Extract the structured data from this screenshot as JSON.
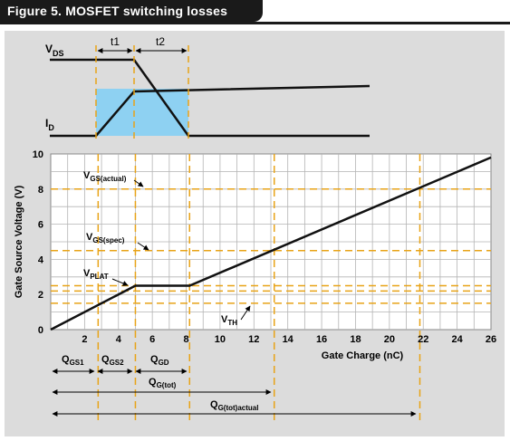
{
  "figure_title": "Figure 5. MOSFET switching losses",
  "top_diagram": {
    "vds_main": "V",
    "vds_sub": "DS",
    "id_main": "I",
    "id_sub": "D",
    "t1": "t1",
    "t2": "t2"
  },
  "colors": {
    "accent_orange": "#e8a317",
    "shade_blue": "#8ed1f2",
    "panel_gray": "#dcdcdc",
    "banner": "#1a1a1a"
  },
  "chart_data": {
    "type": "line",
    "xlabel": "Gate Charge (nC)",
    "ylabel": "Gate Source Voltage (V)",
    "xlim": [
      0,
      26
    ],
    "ylim": [
      0,
      10
    ],
    "xticks": [
      2,
      4,
      6,
      8,
      10,
      12,
      14,
      16,
      18,
      20,
      22,
      24,
      26
    ],
    "yticks": [
      0,
      2,
      4,
      6,
      8,
      10
    ],
    "grid": true,
    "series": [
      {
        "x": [
          0,
          5,
          8.2,
          26
        ],
        "y": [
          0,
          2.5,
          2.5,
          9.8
        ]
      }
    ],
    "hlines": [
      8,
      4.5,
      2.5,
      2.2,
      1.5
    ],
    "vlines": [
      2.8,
      5,
      8.2,
      13.2,
      21.8
    ],
    "annotations": {
      "vgs_actual": {
        "main": "V",
        "sub": "GS(actual)"
      },
      "vgs_spec": {
        "main": "V",
        "sub": "GS(spec)"
      },
      "vplat": {
        "main": "V",
        "sub": "PLAT"
      },
      "vth": {
        "main": "V",
        "sub": "TH"
      },
      "qgs1": {
        "main": "Q",
        "sub": "GS1"
      },
      "qgs2": {
        "main": "Q",
        "sub": "GS2"
      },
      "qgd": {
        "main": "Q",
        "sub": "GD"
      },
      "qgtot": {
        "main": "Q",
        "sub": "G(tot)"
      },
      "qgtot_actual": {
        "main": "Q",
        "sub": "G(tot)actual"
      }
    }
  }
}
